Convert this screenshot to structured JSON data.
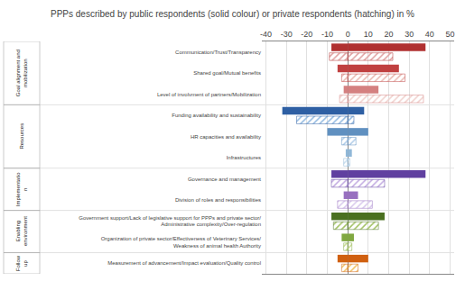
{
  "chart_data": {
    "type": "bar",
    "orientation": "horizontal",
    "title": "PPPs described by public respondents (solid colour) or private respondents (hatching) in %",
    "categories": [
      "Communication/Trust/Transparency",
      "Shared goal/Mutual benefits",
      "Level of involvment of partners/Mobilization",
      "Funding availability and sustainability",
      "HR capacities and availability",
      "Infrastructures",
      "Governance and management",
      "Division of roles and responsibilities",
      "Government support/Lack of legislative support for PPPs and private sector/\nAdministrative complexity/Over-regulation",
      "Organization of private sector/Effectiveness of Veterinary Services/\nWeakness of animal health Authority",
      "Measurement of advancement/Impact evaluation/Quality control"
    ],
    "groups": [
      {
        "label": "Goal alignment and\nmobilization",
        "span": [
          0,
          2
        ]
      },
      {
        "label": "Resources",
        "span": [
          3,
          5
        ]
      },
      {
        "label": "Implementatio\nn",
        "span": [
          6,
          7
        ]
      },
      {
        "label": "Enabling\nenvironment",
        "span": [
          8,
          9
        ]
      },
      {
        "label": "Follow\nup",
        "span": [
          10,
          10
        ]
      }
    ],
    "series": [
      {
        "marker": "solid",
        "values": [
          -8,
          -5,
          -2,
          -32,
          -10,
          -1,
          -8,
          -2,
          -8,
          -3,
          -5
        ],
        "colors": [
          "#b03030",
          "#c04040",
          "#d48080",
          "#2e5fa3",
          "#6090c0",
          "#90b8d8",
          "#6040a0",
          "#9870c0",
          "#4a7020",
          "#80a840",
          "#d06010"
        ]
      },
      {
        "marker": "solid",
        "values": [
          38,
          25,
          15,
          8,
          10,
          2,
          38,
          5,
          18,
          3,
          10
        ],
        "colors": [
          "#b03030",
          "#c04040",
          "#d48080",
          "#2e5fa3",
          "#6090c0",
          "#90b8d8",
          "#6040a0",
          "#9870c0",
          "#4a7020",
          "#80a840",
          "#d06010"
        ]
      },
      {
        "marker": "hatch",
        "values": [
          -9,
          -3,
          -4,
          -25,
          -3,
          -2,
          -8,
          -5,
          -7,
          -2,
          -3
        ],
        "colors": [
          "#e0a0a0",
          "#e8b8b0",
          "#f0d0cc",
          "#90b8e0",
          "#b0cce8",
          "#c8dff0",
          "#c0a8e0",
          "#d8c8ec",
          "#a0c060",
          "#c8dc90",
          "#f0c060"
        ]
      },
      {
        "marker": "hatch",
        "values": [
          22,
          28,
          37,
          3,
          4,
          1,
          18,
          12,
          15,
          2,
          5
        ],
        "colors": [
          "#e0a0a0",
          "#e8b8b0",
          "#f0d0cc",
          "#90b8e0",
          "#b0cce8",
          "#c8dff0",
          "#c0a8e0",
          "#d8c8ec",
          "#a0c060",
          "#c8dc90",
          "#f0c060"
        ]
      }
    ],
    "xlim": [
      -42,
      52
    ],
    "xticks": [
      -40,
      -30,
      -20,
      -10,
      0,
      10,
      20,
      30,
      40,
      50
    ],
    "grid": true
  }
}
